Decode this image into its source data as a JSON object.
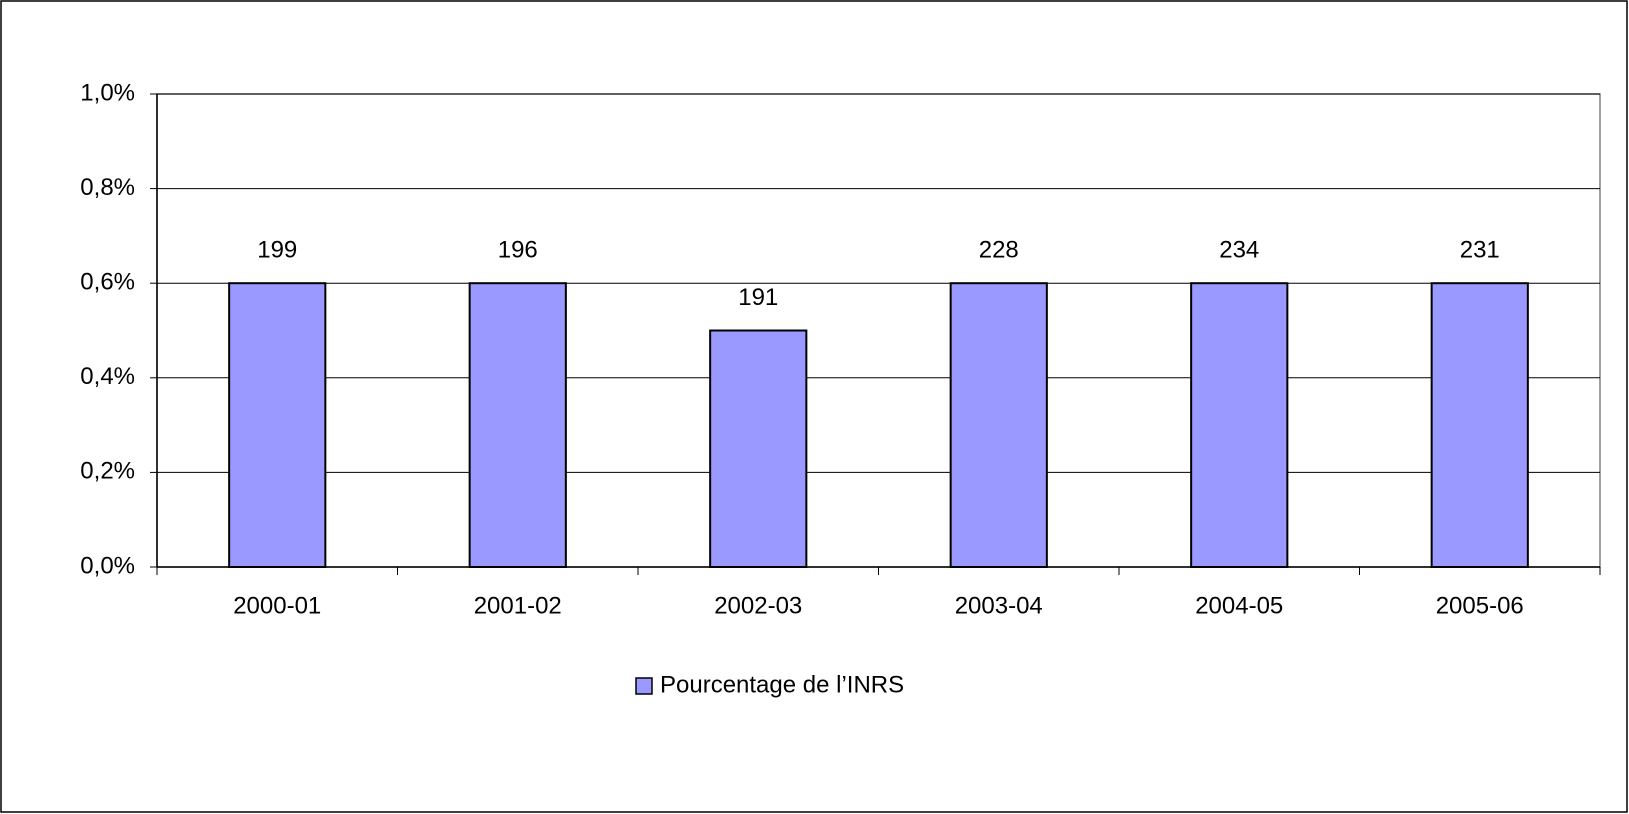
{
  "chart_data": {
    "type": "bar",
    "categories": [
      "2000-01",
      "2001-02",
      "2002-03",
      "2003-04",
      "2004-05",
      "2005-06"
    ],
    "series": [
      {
        "name": "Pourcentage de l’INRS",
        "color": "#9999ff",
        "values": [
          0.6,
          0.6,
          0.5,
          0.6,
          0.6,
          0.6
        ]
      }
    ],
    "bar_labels": [
      199,
      196,
      191,
      228,
      234,
      231
    ],
    "ylim": [
      0,
      1
    ],
    "yticks": [
      {
        "value": 0,
        "label": "0,0%"
      },
      {
        "value": 0.2,
        "label": "0,2%"
      },
      {
        "value": 0.4,
        "label": "0,4%"
      },
      {
        "value": 0.6,
        "label": "0,6%"
      },
      {
        "value": 0.8,
        "label": "0,8%"
      },
      {
        "value": 1,
        "label": "1,0%"
      }
    ],
    "grid": true,
    "legend": "bottom"
  }
}
